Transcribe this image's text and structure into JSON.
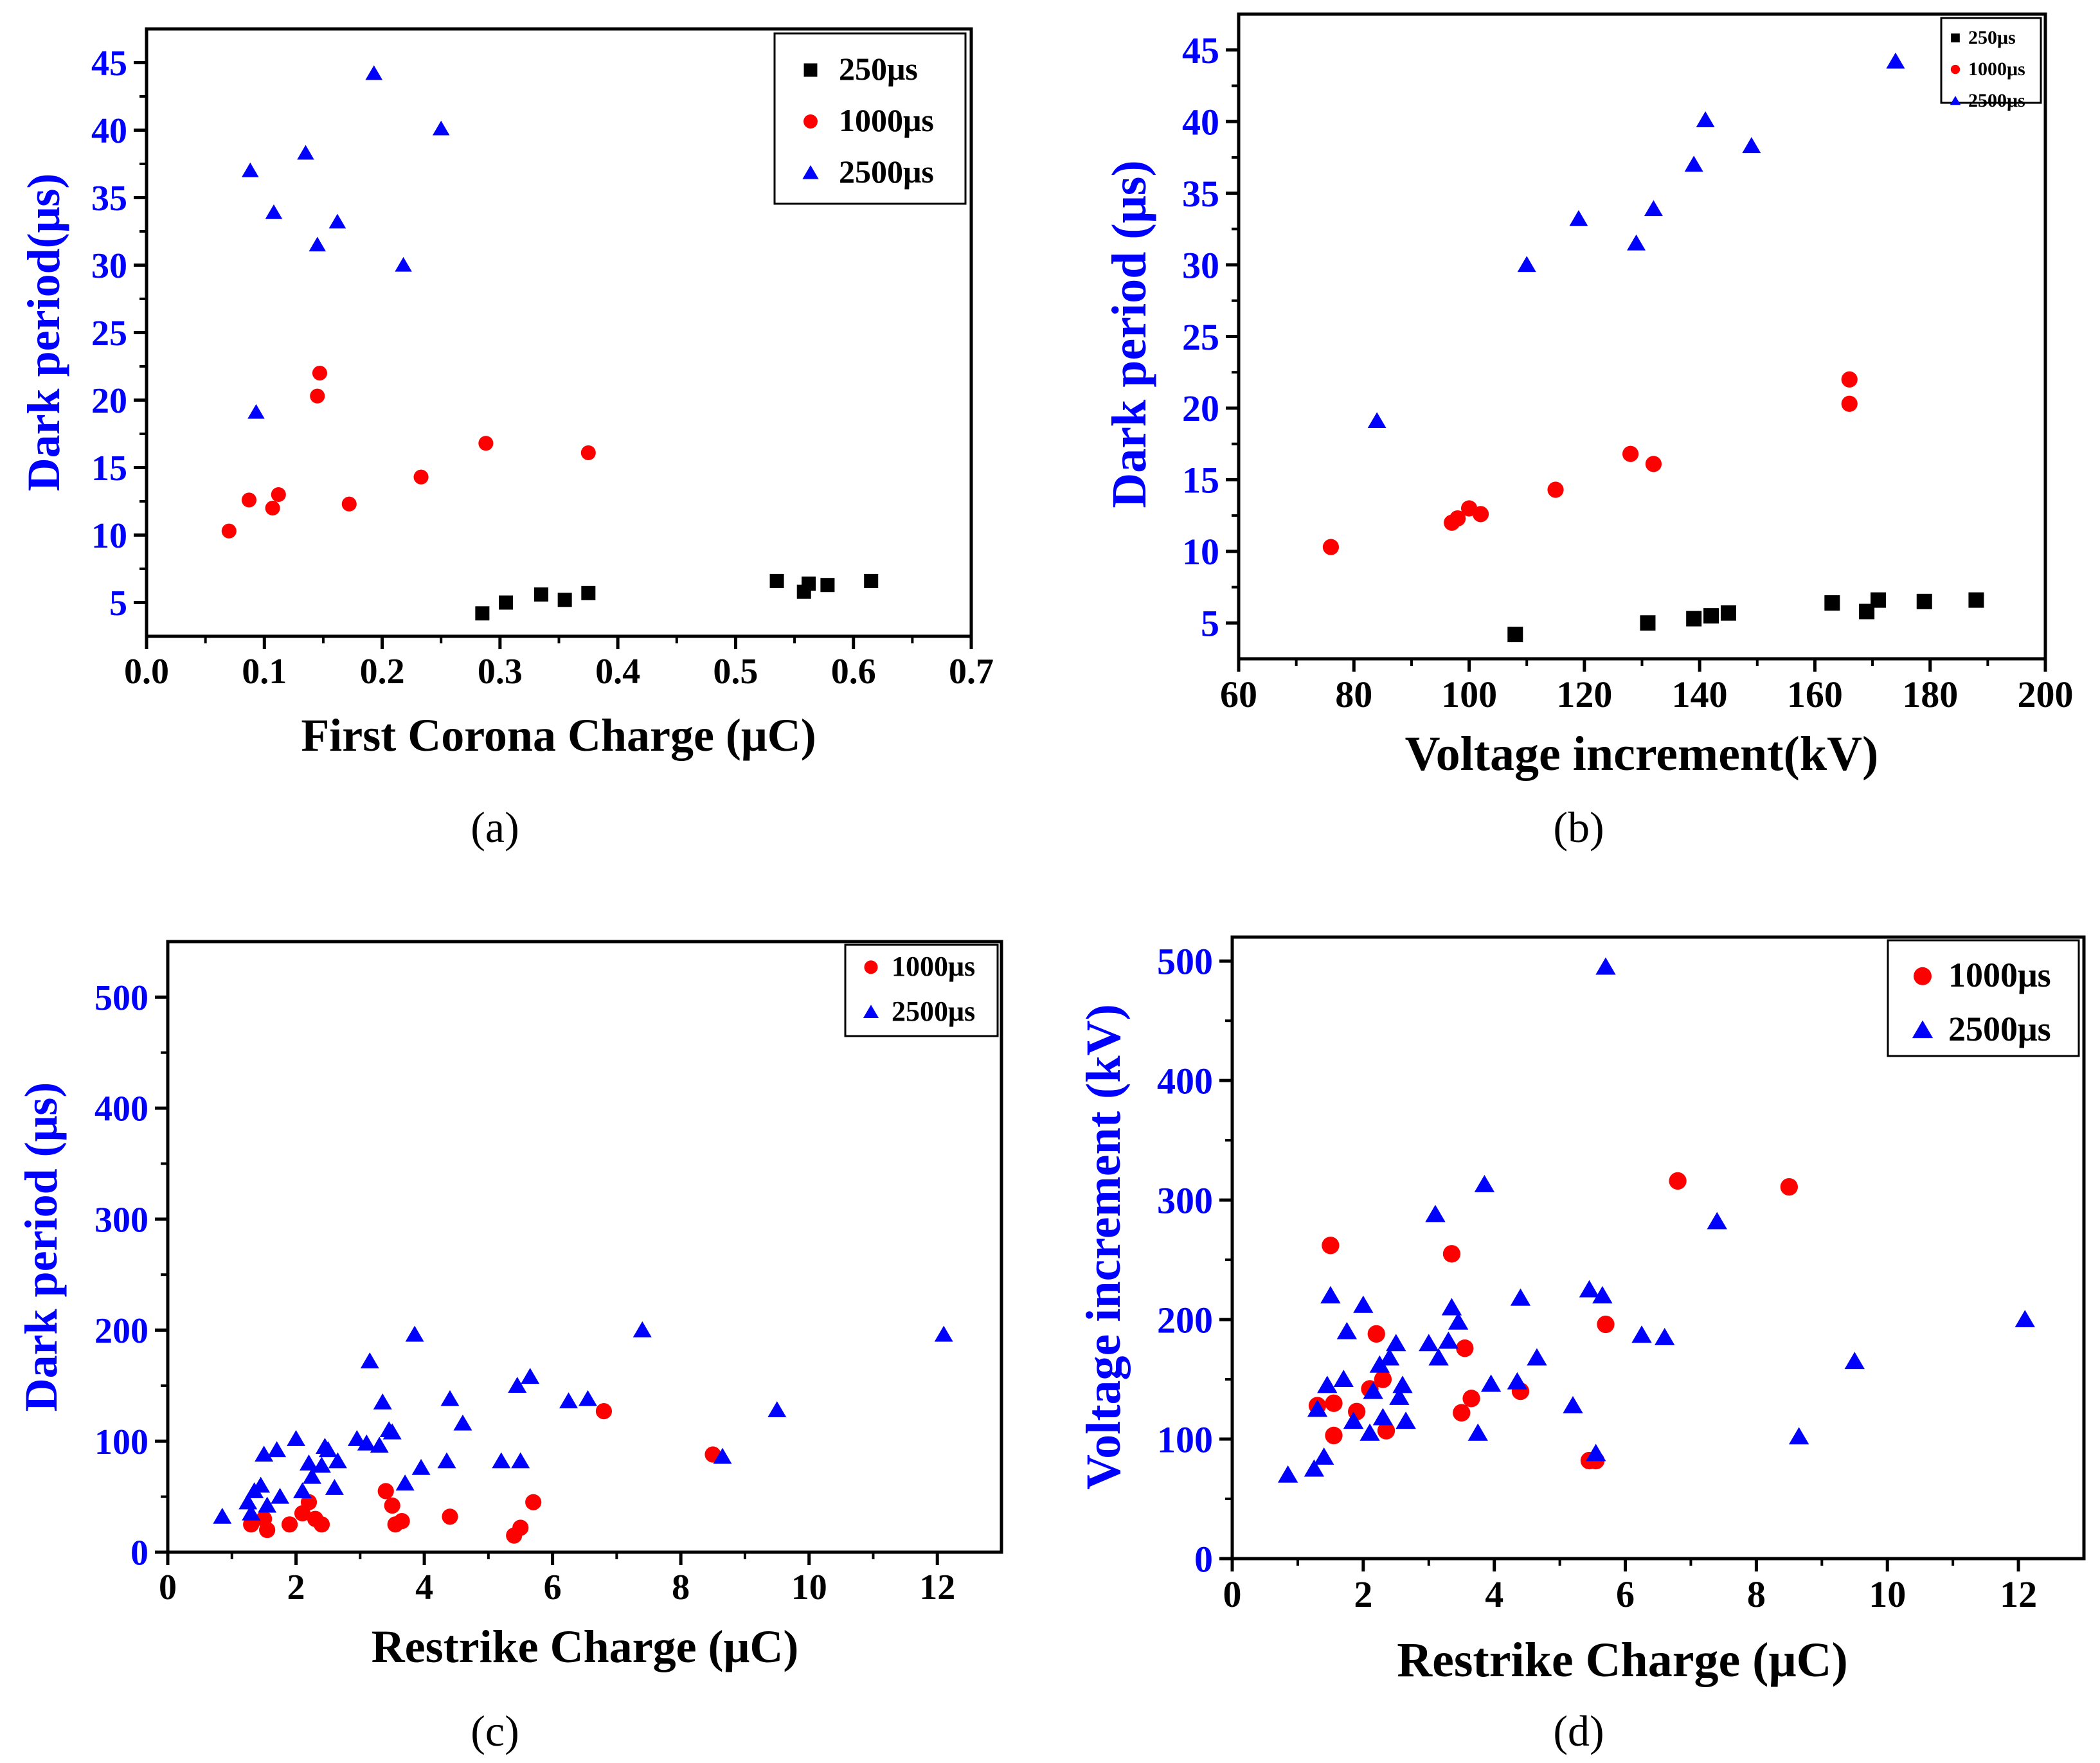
{
  "colors": {
    "series_250": "#000000",
    "series_1000": "#ff0000",
    "series_2500": "#0000ff",
    "ylabel": "#0000ff",
    "axis": "#000000"
  },
  "chart_data": [
    {
      "type": "scatter",
      "label": "(a)",
      "xlabel": "First Corona Charge (μC)",
      "ylabel": "Dark period(μs)",
      "xlim": [
        0.0,
        0.7
      ],
      "ylim": [
        2.5,
        47.5
      ],
      "xticks": [
        0.0,
        0.1,
        0.2,
        0.3,
        0.4,
        0.5,
        0.6,
        0.7
      ],
      "xtick_labels": [
        "0.0",
        "0.1",
        "0.2",
        "0.3",
        "0.4",
        "0.5",
        "0.6",
        "0.7"
      ],
      "yticks": [
        5,
        10,
        15,
        20,
        25,
        30,
        35,
        40,
        45
      ],
      "ytick_labels": [
        "5",
        "10",
        "15",
        "20",
        "25",
        "30",
        "35",
        "40",
        "45"
      ],
      "legend_position": "top-right",
      "series": [
        {
          "name": "250μs",
          "marker": "square",
          "color": "#000000",
          "x": [
            0.285,
            0.305,
            0.335,
            0.355,
            0.375,
            0.535,
            0.558,
            0.562,
            0.578,
            0.615
          ],
          "y": [
            4.2,
            5.0,
            5.6,
            5.2,
            5.7,
            6.6,
            5.8,
            6.4,
            6.3,
            6.6
          ]
        },
        {
          "name": "1000μs",
          "marker": "circle",
          "color": "#ff0000",
          "x": [
            0.07,
            0.087,
            0.107,
            0.112,
            0.145,
            0.147,
            0.172,
            0.233,
            0.288,
            0.375
          ],
          "y": [
            10.3,
            12.6,
            12.0,
            13.0,
            20.3,
            22.0,
            12.3,
            14.3,
            16.8,
            16.1
          ]
        },
        {
          "name": "2500μs",
          "marker": "triangle",
          "color": "#0000ff",
          "x": [
            0.088,
            0.093,
            0.108,
            0.135,
            0.145,
            0.162,
            0.193,
            0.218,
            0.25
          ],
          "y": [
            37.0,
            19.1,
            33.9,
            38.3,
            31.5,
            33.2,
            44.2,
            30.0,
            40.1
          ]
        }
      ]
    },
    {
      "type": "scatter",
      "label": "(b)",
      "xlabel": "Voltage increment(kV)",
      "ylabel": "Dark period (μs)",
      "xlim": [
        60,
        200
      ],
      "ylim": [
        2.5,
        47.5
      ],
      "xticks": [
        60,
        80,
        100,
        120,
        140,
        160,
        180,
        200
      ],
      "xtick_labels": [
        "60",
        "80",
        "100",
        "120",
        "140",
        "160",
        "180",
        "200"
      ],
      "yticks": [
        5,
        10,
        15,
        20,
        25,
        30,
        35,
        40,
        45
      ],
      "ytick_labels": [
        "5",
        "10",
        "15",
        "20",
        "25",
        "30",
        "35",
        "40",
        "45"
      ],
      "legend_position": "top-right",
      "series": [
        {
          "name": "250μs",
          "marker": "square",
          "color": "#000000",
          "x": [
            108,
            131,
            139,
            142,
            145,
            163,
            169,
            171,
            179,
            188
          ],
          "y": [
            4.2,
            5.0,
            5.3,
            5.5,
            5.7,
            6.4,
            5.8,
            6.6,
            6.5,
            6.6
          ]
        },
        {
          "name": "1000μs",
          "marker": "circle",
          "color": "#ff0000",
          "x": [
            76,
            97,
            98,
            100,
            102,
            115,
            128,
            132,
            166,
            166
          ],
          "y": [
            10.3,
            12.0,
            12.3,
            13.0,
            12.6,
            14.3,
            16.8,
            16.1,
            22.0,
            20.3
          ]
        },
        {
          "name": "2500μs",
          "marker": "triangle",
          "color": "#0000ff",
          "x": [
            84,
            110,
            119,
            129,
            132,
            139,
            141,
            149,
            174
          ],
          "y": [
            19.1,
            30.0,
            33.2,
            31.5,
            33.9,
            37.0,
            40.1,
            38.3,
            44.2
          ]
        }
      ]
    },
    {
      "type": "scatter",
      "label": "(c)",
      "xlabel": "Restrike Charge (μC)",
      "ylabel": "Dark period (μs)",
      "xlim": [
        0,
        13
      ],
      "ylim": [
        0,
        550
      ],
      "xticks": [
        0,
        2,
        4,
        6,
        8,
        10,
        12
      ],
      "xtick_labels": [
        "0",
        "2",
        "4",
        "6",
        "8",
        "10",
        "12"
      ],
      "yticks": [
        0,
        100,
        200,
        300,
        400,
        500
      ],
      "ytick_labels": [
        "0",
        "100",
        "200",
        "300",
        "400",
        "500"
      ],
      "legend_position": "top-right",
      "series": [
        {
          "name": "1000μs",
          "marker": "circle",
          "color": "#ff0000",
          "x": [
            1.3,
            1.5,
            1.55,
            1.9,
            2.1,
            2.2,
            2.3,
            2.4,
            3.4,
            3.5,
            3.55,
            3.65,
            4.4,
            5.4,
            5.5,
            5.7,
            6.8,
            8.5
          ],
          "y": [
            25,
            30,
            20,
            25,
            35,
            45,
            30,
            25,
            55,
            42,
            25,
            28,
            32,
            15,
            22,
            45,
            127,
            88
          ]
        },
        {
          "name": "2500μs",
          "marker": "triangle",
          "color": "#0000ff",
          "x": [
            0.85,
            1.25,
            1.3,
            1.35,
            1.45,
            1.5,
            1.55,
            1.7,
            1.75,
            2.0,
            2.1,
            2.2,
            2.25,
            2.4,
            2.45,
            2.5,
            2.6,
            2.65,
            2.95,
            3.1,
            3.15,
            3.3,
            3.35,
            3.45,
            3.5,
            3.7,
            3.85,
            3.95,
            4.35,
            4.4,
            4.6,
            5.2,
            5.45,
            5.5,
            5.65,
            6.25,
            6.55,
            7.4,
            8.65,
            9.5,
            12.1
          ],
          "y": [
            32,
            45,
            35,
            55,
            60,
            88,
            42,
            92,
            50,
            102,
            55,
            80,
            68,
            78,
            95,
            92,
            58,
            82,
            102,
            98,
            172,
            96,
            135,
            110,
            108,
            62,
            196,
            76,
            82,
            138,
            116,
            82,
            150,
            82,
            158,
            136,
            138,
            200,
            86,
            128,
            196
          ]
        }
      ]
    },
    {
      "type": "scatter",
      "label": "(d)",
      "xlabel": "Restrike Charge (μC)",
      "ylabel": "Voltage increment (kV)",
      "xlim": [
        0,
        13
      ],
      "ylim": [
        0,
        520
      ],
      "xticks": [
        0,
        2,
        4,
        6,
        8,
        10,
        12
      ],
      "xtick_labels": [
        "0",
        "2",
        "4",
        "6",
        "8",
        "10",
        "12"
      ],
      "yticks": [
        0,
        100,
        200,
        300,
        400,
        500
      ],
      "ytick_labels": [
        "0",
        "100",
        "200",
        "300",
        "400",
        "500"
      ],
      "legend_position": "top-right",
      "series": [
        {
          "name": "1000μs",
          "marker": "circle",
          "color": "#ff0000",
          "x": [
            1.3,
            1.55,
            1.55,
            1.5,
            1.9,
            2.1,
            2.2,
            2.3,
            2.35,
            3.35,
            3.5,
            3.55,
            3.65,
            4.4,
            5.45,
            5.55,
            5.7,
            6.8,
            8.5
          ],
          "y": [
            128,
            130,
            103,
            262,
            123,
            142,
            188,
            150,
            107,
            255,
            122,
            176,
            134,
            140,
            82,
            82,
            196,
            316,
            311
          ]
        },
        {
          "name": "2500μs",
          "marker": "triangle",
          "color": "#0000ff",
          "x": [
            0.85,
            1.25,
            1.3,
            1.4,
            1.45,
            1.5,
            1.7,
            1.75,
            1.85,
            2.0,
            2.1,
            2.15,
            2.25,
            2.3,
            2.4,
            2.5,
            2.55,
            2.6,
            2.65,
            3.0,
            3.1,
            3.15,
            3.3,
            3.35,
            3.45,
            3.75,
            3.85,
            3.95,
            4.35,
            4.4,
            4.65,
            5.2,
            5.45,
            5.55,
            5.65,
            5.7,
            6.25,
            6.6,
            7.4,
            8.65,
            9.5,
            12.1
          ],
          "y": [
            70,
            75,
            125,
            85,
            145,
            220,
            150,
            190,
            115,
            212,
            105,
            140,
            162,
            118,
            168,
            180,
            135,
            145,
            115,
            180,
            288,
            168,
            182,
            210,
            198,
            105,
            313,
            146,
            148,
            218,
            168,
            128,
            225,
            88,
            220,
            495,
            187,
            185,
            282,
            102,
            165,
            200
          ]
        }
      ]
    }
  ]
}
